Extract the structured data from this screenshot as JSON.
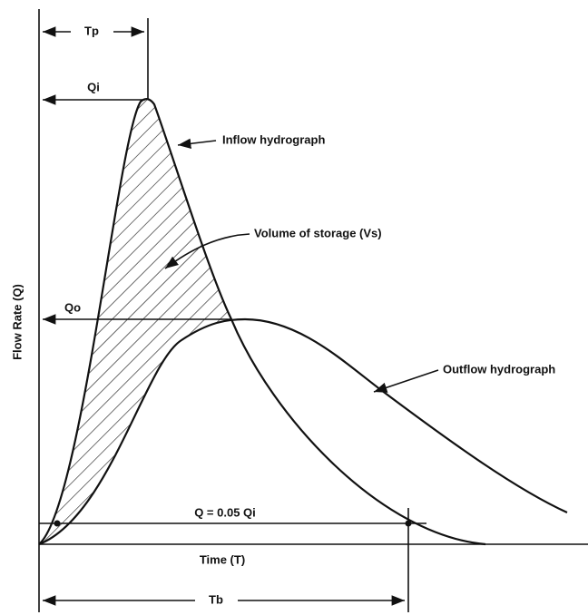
{
  "labels": {
    "tp": "Tp",
    "qi": "Qi",
    "inflow": "Inflow hydrograph",
    "storage": "Volume of storage (Vs)",
    "qo": "Qo",
    "y_axis": "Flow Rate (Q)",
    "outflow": "Outflow hydrograph",
    "q005": "Q = 0.05 Qi",
    "x_axis": "Time (T)",
    "tb": "Tb"
  }
}
